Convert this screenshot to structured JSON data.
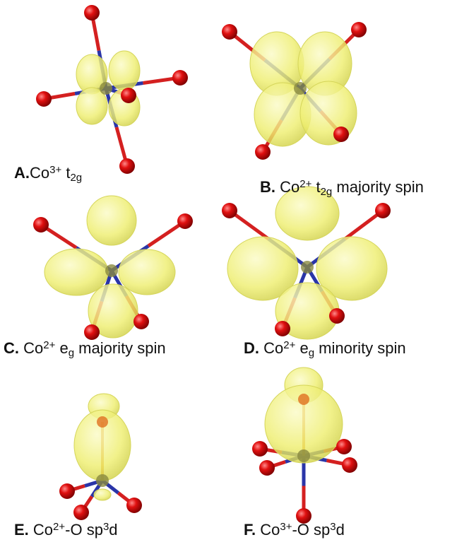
{
  "panels": [
    {
      "letter": "A.",
      "caption": [
        "Co",
        {
          "sup": "3+"
        },
        " t",
        {
          "sub": "2g"
        }
      ]
    },
    {
      "letter": "B.",
      "caption": [
        " Co",
        {
          "sup": "2+"
        },
        " t",
        {
          "sub": "2g"
        },
        " majority spin"
      ]
    },
    {
      "letter": "C.",
      "caption": [
        " Co",
        {
          "sup": "2+"
        },
        " e",
        {
          "sub": "g"
        },
        " majority spin"
      ]
    },
    {
      "letter": "D.",
      "caption": [
        " Co",
        {
          "sup": "2+"
        },
        " e",
        {
          "sub": "g"
        },
        " minority spin"
      ]
    },
    {
      "letter": "E.",
      "caption": [
        " Co",
        {
          "sup": "2+"
        },
        "-O sp",
        {
          "sup": "3"
        },
        "d"
      ]
    },
    {
      "letter": "F.",
      "caption": [
        " Co",
        {
          "sup": "3+"
        },
        "-O sp",
        {
          "sup": "3"
        },
        "d"
      ]
    }
  ]
}
